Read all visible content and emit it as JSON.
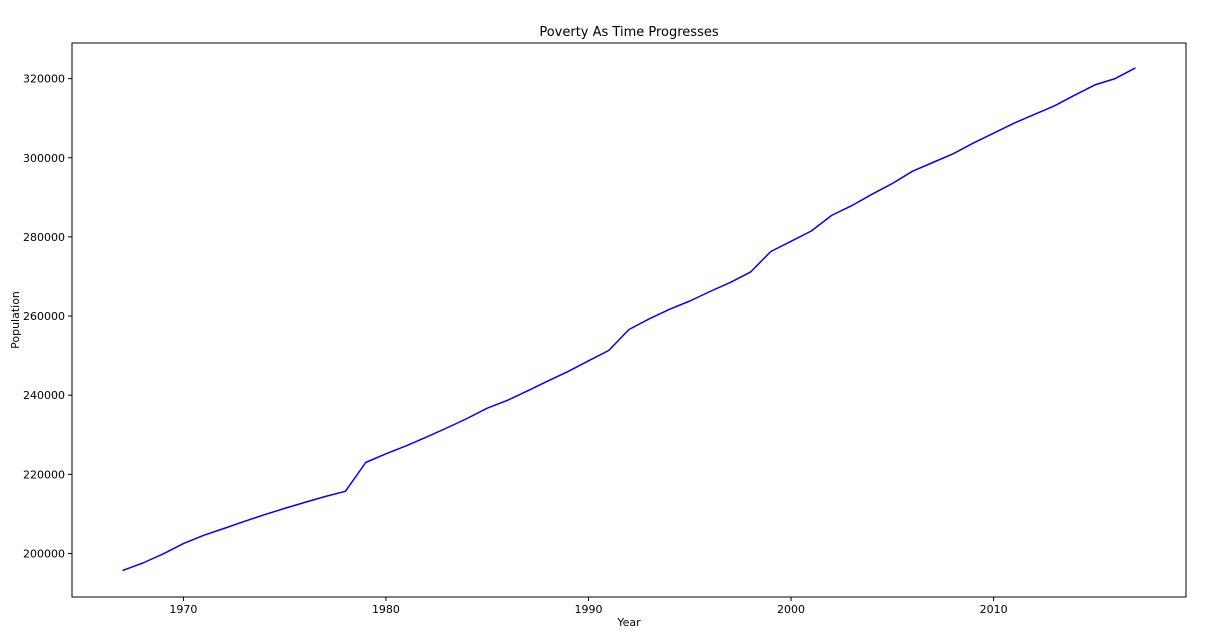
{
  "chart_data": {
    "type": "line",
    "title": "Poverty As Time Progresses",
    "xlabel": "Year",
    "ylabel": "Population",
    "xlim": [
      1964.5,
      2019.5
    ],
    "ylim": [
      189000,
      329000
    ],
    "xticks": [
      1970,
      1980,
      1990,
      2000,
      2010
    ],
    "yticks": [
      200000,
      220000,
      240000,
      260000,
      280000,
      300000,
      320000
    ],
    "grid": false,
    "series": [
      {
        "color": "#0000ff",
        "x": [
          1967,
          1968,
          1969,
          1970,
          1971,
          1972,
          1973,
          1974,
          1975,
          1976,
          1977,
          1978,
          1979,
          1980,
          1981,
          1982,
          1983,
          1984,
          1985,
          1986,
          1987,
          1988,
          1989,
          1990,
          1991,
          1992,
          1993,
          1994,
          1995,
          1996,
          1997,
          1998,
          1999,
          2000,
          2001,
          2002,
          2003,
          2004,
          2005,
          2006,
          2007,
          2008,
          2009,
          2010,
          2011,
          2012,
          2013,
          2014,
          2015,
          2016,
          2017
        ],
        "values": [
          195700,
          197600,
          199900,
          202500,
          204600,
          206300,
          208100,
          209800,
          211400,
          212900,
          214400,
          215700,
          223000,
          225200,
          227200,
          229400,
          231700,
          234100,
          236700,
          238700,
          241100,
          243600,
          246000,
          248700,
          251300,
          256600,
          259300,
          261700,
          263800,
          266200,
          268500,
          271100,
          276300,
          278900,
          281500,
          285400,
          287900,
          290800,
          293500,
          296600,
          298800,
          301000,
          303700,
          306200,
          308700,
          310900,
          313100,
          315800,
          318400,
          320000,
          322700
        ]
      }
    ]
  }
}
